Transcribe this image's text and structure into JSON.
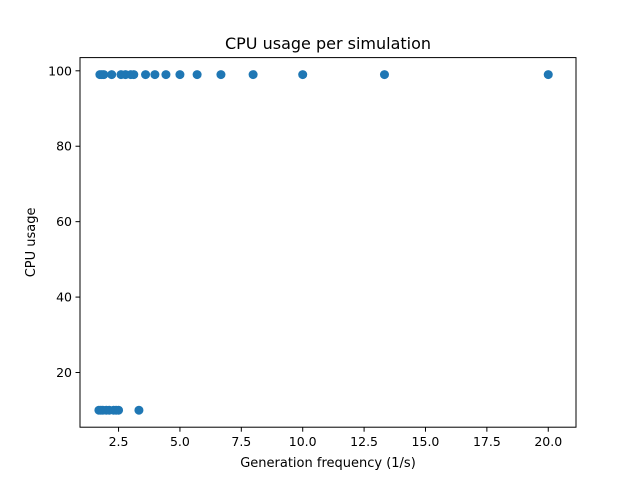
{
  "chart_data": {
    "type": "scatter",
    "title": "CPU usage per simulation",
    "xlabel": "Generation frequency (1/s)",
    "ylabel": "CPU usage",
    "xlim": [
      0.93,
      21.13
    ],
    "ylim": [
      5.5,
      103.5
    ],
    "xticks": [
      2.5,
      5.0,
      7.5,
      10.0,
      12.5,
      15.0,
      17.5,
      20.0
    ],
    "xtick_labels": [
      "2.5",
      "5.0",
      "7.5",
      "10.0",
      "12.5",
      "15.0",
      "17.5",
      "20.0"
    ],
    "yticks": [
      20,
      40,
      60,
      80,
      100
    ],
    "ytick_labels": [
      "20",
      "40",
      "60",
      "80",
      "100"
    ],
    "grid": false,
    "legend": false,
    "marker_color": "#1f77b4",
    "points": [
      {
        "x": 1.74,
        "y": 99
      },
      {
        "x": 1.82,
        "y": 99
      },
      {
        "x": 1.9,
        "y": 99
      },
      {
        "x": 2.22,
        "y": 99
      },
      {
        "x": 2.6,
        "y": 99
      },
      {
        "x": 2.78,
        "y": 99
      },
      {
        "x": 3.0,
        "y": 99
      },
      {
        "x": 3.12,
        "y": 99
      },
      {
        "x": 3.6,
        "y": 99
      },
      {
        "x": 3.98,
        "y": 99
      },
      {
        "x": 4.43,
        "y": 99
      },
      {
        "x": 5.0,
        "y": 99
      },
      {
        "x": 5.7,
        "y": 99
      },
      {
        "x": 6.67,
        "y": 99
      },
      {
        "x": 7.98,
        "y": 99
      },
      {
        "x": 10.0,
        "y": 99
      },
      {
        "x": 13.33,
        "y": 99
      },
      {
        "x": 20.0,
        "y": 99
      },
      {
        "x": 1.7,
        "y": 10
      },
      {
        "x": 1.78,
        "y": 10
      },
      {
        "x": 1.86,
        "y": 10
      },
      {
        "x": 2.0,
        "y": 10
      },
      {
        "x": 2.12,
        "y": 10
      },
      {
        "x": 2.3,
        "y": 10
      },
      {
        "x": 2.4,
        "y": 10
      },
      {
        "x": 2.5,
        "y": 10
      },
      {
        "x": 3.33,
        "y": 10
      }
    ]
  }
}
